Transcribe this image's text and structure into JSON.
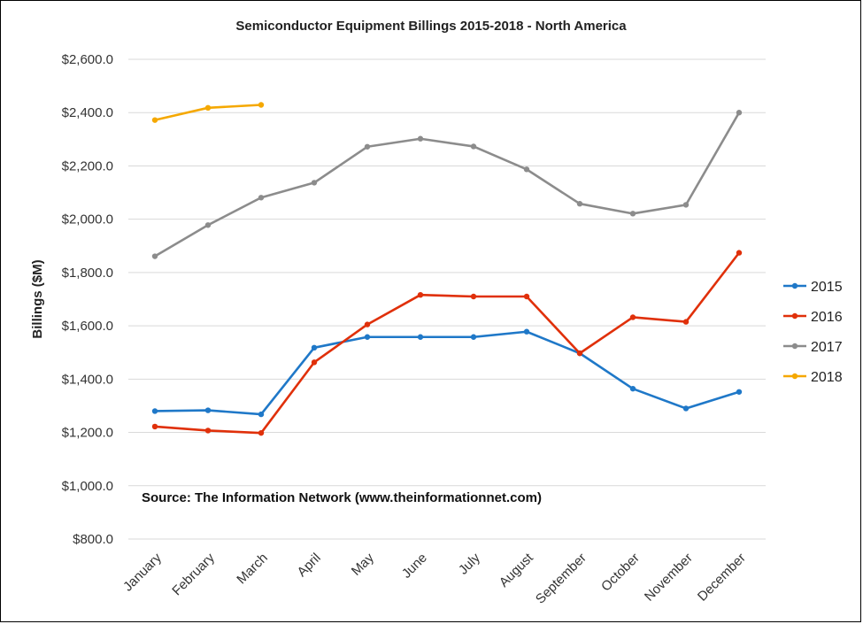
{
  "chart_data": {
    "type": "line",
    "title": "Semiconductor Equipment Billings 2015-2018 - North America",
    "ylabel": "Billings ($M)",
    "xlabel": "",
    "ylim": [
      800,
      2600
    ],
    "ytick_labels": [
      "$800.0",
      "$1,000.0",
      "$1,200.0",
      "$1,400.0",
      "$1,600.0",
      "$1,800.0",
      "$2,000.0",
      "$2,200.0",
      "$2,400.0",
      "$2,600.0"
    ],
    "ytick_values": [
      800,
      1000,
      1200,
      1400,
      1600,
      1800,
      2000,
      2200,
      2400,
      2600
    ],
    "grid": true,
    "legend_position": "right",
    "categories": [
      "January",
      "February",
      "March",
      "April",
      "May",
      "June",
      "July",
      "August",
      "September",
      "October",
      "November",
      "December"
    ],
    "annotation": "Source: The Information Network (www.theinformationnet.com)",
    "series": [
      {
        "name": "2015",
        "color": "#1F78C8",
        "values": [
          1280,
          1283,
          1268,
          1518,
          1558,
          1558,
          1558,
          1578,
          1497,
          1364,
          1290,
          1352
        ]
      },
      {
        "name": "2016",
        "color": "#E0300A",
        "values": [
          1222,
          1207,
          1198,
          1463,
          1605,
          1716,
          1710,
          1710,
          1497,
          1632,
          1615,
          1874
        ]
      },
      {
        "name": "2017",
        "color": "#8C8C8C",
        "values": [
          1861,
          1978,
          2081,
          2137,
          2272,
          2302,
          2273,
          2187,
          2058,
          2021,
          2054,
          2400
        ]
      },
      {
        "name": "2018",
        "color": "#F5A800",
        "values": [
          2372,
          2418,
          2429,
          null,
          null,
          null,
          null,
          null,
          null,
          null,
          null,
          null
        ]
      }
    ]
  }
}
